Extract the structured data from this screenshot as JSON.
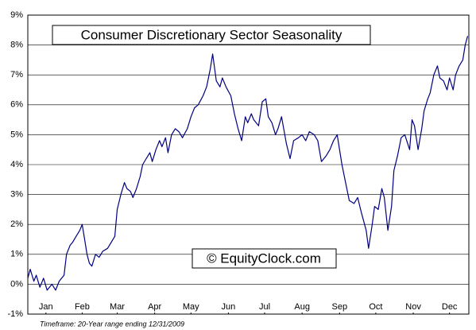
{
  "chart_data": {
    "type": "line",
    "title": "Consumer Discretionary Sector Seasonality",
    "annotation": "© EquityClock.com",
    "footnote": "Timeframe: 20-Year range ending 12/31/2009",
    "color": "#000080",
    "grid": true,
    "xlim": [
      0,
      365
    ],
    "xticks": [
      {
        "value": 15,
        "label": "Jan"
      },
      {
        "value": 45,
        "label": "Feb"
      },
      {
        "value": 74,
        "label": "Mar"
      },
      {
        "value": 105,
        "label": "Apr"
      },
      {
        "value": 135,
        "label": "May"
      },
      {
        "value": 166,
        "label": "Jun"
      },
      {
        "value": 196,
        "label": "Jul"
      },
      {
        "value": 227,
        "label": "Aug"
      },
      {
        "value": 258,
        "label": "Sep"
      },
      {
        "value": 288,
        "label": "Oct"
      },
      {
        "value": 319,
        "label": "Nov"
      },
      {
        "value": 349,
        "label": "Dec"
      }
    ],
    "ylim": [
      -1,
      9
    ],
    "yticks": [
      {
        "value": -1,
        "label": "-1%"
      },
      {
        "value": 0,
        "label": "0%"
      },
      {
        "value": 1,
        "label": "1%"
      },
      {
        "value": 2,
        "label": "2%"
      },
      {
        "value": 3,
        "label": "3%"
      },
      {
        "value": 4,
        "label": "4%"
      },
      {
        "value": 5,
        "label": "5%"
      },
      {
        "value": 6,
        "label": "6%"
      },
      {
        "value": 7,
        "label": "7%"
      },
      {
        "value": 8,
        "label": "8%"
      },
      {
        "value": 9,
        "label": "9%"
      }
    ],
    "x": [
      0,
      2,
      5,
      7,
      10,
      13,
      16,
      20,
      23,
      26,
      30,
      32,
      35,
      37,
      40,
      43,
      45,
      47,
      49,
      51,
      53,
      56,
      59,
      62,
      66,
      69,
      72,
      74,
      77,
      80,
      82,
      85,
      87,
      90,
      93,
      95,
      98,
      101,
      103,
      106,
      109,
      111,
      114,
      116,
      119,
      122,
      125,
      128,
      132,
      135,
      138,
      141,
      145,
      148,
      151,
      153,
      156,
      159,
      161,
      164,
      168,
      171,
      174,
      177,
      180,
      182,
      185,
      187,
      191,
      194,
      197,
      199,
      202,
      205,
      207,
      210,
      214,
      217,
      220,
      224,
      227,
      230,
      233,
      237,
      240,
      243,
      247,
      250,
      253,
      256,
      260,
      263,
      266,
      270,
      273,
      276,
      280,
      282,
      285,
      287,
      290,
      293,
      295,
      298,
      301,
      303,
      306,
      309,
      312,
      316,
      318,
      320,
      323,
      326,
      328,
      331,
      333,
      336,
      339,
      341,
      344,
      347,
      349,
      352,
      354,
      357,
      360,
      362,
      364
    ],
    "values": [
      0.2,
      0.5,
      0.1,
      0.3,
      -0.1,
      0.2,
      -0.2,
      0.0,
      -0.2,
      0.1,
      0.3,
      1.0,
      1.3,
      1.4,
      1.6,
      1.8,
      2.0,
      1.5,
      1.0,
      0.7,
      0.6,
      1.0,
      0.9,
      1.1,
      1.2,
      1.4,
      1.6,
      2.5,
      3.0,
      3.4,
      3.2,
      3.1,
      2.9,
      3.2,
      3.6,
      4.0,
      4.2,
      4.4,
      4.1,
      4.5,
      4.8,
      4.6,
      4.9,
      4.4,
      5.0,
      5.2,
      5.1,
      4.9,
      5.2,
      5.6,
      5.9,
      6.0,
      6.3,
      6.6,
      7.2,
      7.7,
      6.8,
      6.6,
      6.9,
      6.6,
      6.3,
      5.7,
      5.2,
      4.8,
      5.6,
      5.4,
      5.7,
      5.5,
      5.3,
      6.1,
      6.2,
      5.6,
      5.4,
      5.0,
      5.2,
      5.6,
      4.7,
      4.2,
      4.8,
      4.9,
      5.0,
      4.8,
      5.1,
      5.0,
      4.8,
      4.1,
      4.3,
      4.5,
      4.8,
      5.0,
      4.0,
      3.4,
      2.8,
      2.7,
      2.9,
      2.4,
      1.8,
      1.2,
      2.0,
      2.6,
      2.5,
      3.2,
      2.9,
      1.8,
      2.6,
      3.8,
      4.3,
      4.9,
      5.0,
      4.5,
      5.5,
      5.3,
      4.5,
      5.2,
      5.8,
      6.2,
      6.4,
      7.0,
      7.3,
      6.9,
      6.8,
      6.5,
      6.9,
      6.5,
      7.0,
      7.3,
      7.5,
      8.0,
      8.3
    ]
  }
}
